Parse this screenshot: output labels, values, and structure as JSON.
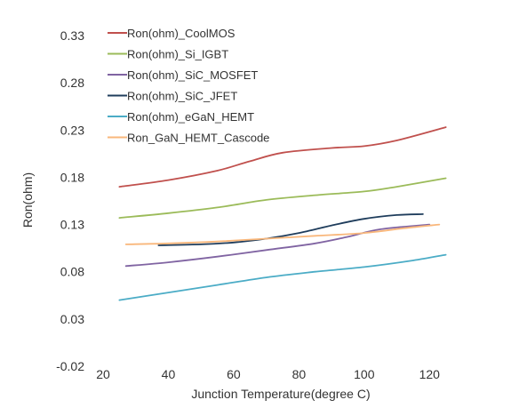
{
  "chart_data": {
    "type": "line",
    "xlabel": "Junction Temperature(degree C)",
    "ylabel": "Ron(ohm)",
    "xlim": [
      20,
      130
    ],
    "ylim": [
      -0.02,
      0.33
    ],
    "xticks": [
      "20",
      "40",
      "60",
      "80",
      "100",
      "120"
    ],
    "yticks": [
      "-0.02",
      "0.03",
      "0.08",
      "0.13",
      "0.18",
      "0.23",
      "0.28",
      "0.33"
    ],
    "grid": false,
    "legend_position": "top-left",
    "series": [
      {
        "name": "Ron(ohm)_CoolMOS",
        "color": "#c0504d",
        "x": [
          25,
          40,
          55,
          65,
          75,
          90,
          100,
          110,
          125
        ],
        "y": [
          0.17,
          0.177,
          0.187,
          0.197,
          0.206,
          0.211,
          0.213,
          0.219,
          0.233
        ]
      },
      {
        "name": "Ron(ohm)_Si_IGBT",
        "color": "#9bbb59",
        "x": [
          25,
          40,
          55,
          70,
          85,
          100,
          110,
          125
        ],
        "y": [
          0.137,
          0.142,
          0.148,
          0.156,
          0.161,
          0.165,
          0.17,
          0.179
        ]
      },
      {
        "name": "Ron(ohm)_SiC_MOSFET",
        "color": "#8064a2",
        "x": [
          27,
          40,
          55,
          70,
          85,
          95,
          105,
          120
        ],
        "y": [
          0.086,
          0.09,
          0.096,
          0.103,
          0.11,
          0.117,
          0.125,
          0.13
        ]
      },
      {
        "name": "Ron(ohm)_SiC_JFET",
        "color": "#1f3d5c",
        "x": [
          37,
          50,
          60,
          70,
          80,
          90,
          100,
          110,
          118
        ],
        "y": [
          0.108,
          0.109,
          0.111,
          0.115,
          0.121,
          0.129,
          0.136,
          0.14,
          0.141
        ]
      },
      {
        "name": "Ron(ohm)_eGaN_HEMT",
        "color": "#4bacc6",
        "x": [
          25,
          40,
          55,
          70,
          85,
          100,
          115,
          125
        ],
        "y": [
          0.05,
          0.058,
          0.066,
          0.074,
          0.08,
          0.085,
          0.092,
          0.098
        ]
      },
      {
        "name": "Ron_GaN_HEMT_Cascode",
        "color": "#f9b77b",
        "x": [
          27,
          40,
          55,
          70,
          85,
          100,
          112,
          123
        ],
        "y": [
          0.109,
          0.11,
          0.112,
          0.115,
          0.118,
          0.121,
          0.126,
          0.13
        ]
      }
    ]
  }
}
